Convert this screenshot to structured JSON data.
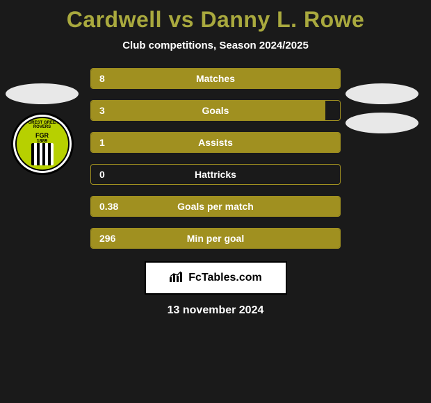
{
  "title_color": "#a9a93e",
  "title": "Cardwell vs Danny L. Rowe",
  "subtitle": "Club competitions, Season 2024/2025",
  "left_ellipse_color": "#e8e8e8",
  "right_ellipses": [
    {
      "color": "#e8e8e8"
    },
    {
      "color": "#e8e8e8"
    }
  ],
  "club_badge": {
    "top_text": "FOREST GREEN ROVERS",
    "middle_text": "FGR",
    "year": "1889",
    "accent": "#b7d000"
  },
  "bars": {
    "default_fill_pct": 100,
    "border_color": "#a09020",
    "fill_color": "#a09020",
    "items": [
      {
        "value": "8",
        "label": "Matches",
        "fill_pct": 100
      },
      {
        "value": "3",
        "label": "Goals",
        "fill_pct": 94
      },
      {
        "value": "1",
        "label": "Assists",
        "fill_pct": 100
      },
      {
        "value": "0",
        "label": "Hattricks",
        "fill_pct": 0
      },
      {
        "value": "0.38",
        "label": "Goals per match",
        "fill_pct": 100
      },
      {
        "value": "296",
        "label": "Min per goal",
        "fill_pct": 100
      }
    ]
  },
  "footer": {
    "brand": "FcTables.com"
  },
  "date": "13 november 2024"
}
